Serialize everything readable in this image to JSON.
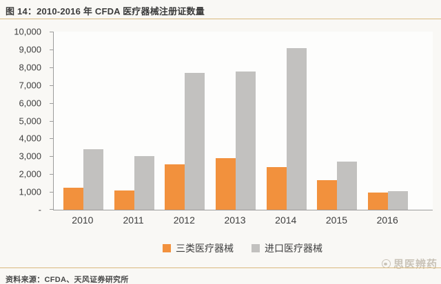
{
  "header": {
    "title": "图 14：2010-2016 年 CFDA 医疗器械注册证数量"
  },
  "footer": {
    "source": "资料来源：CFDA、天风证券研究所",
    "watermark": "思医辨药"
  },
  "colors": {
    "accent_rule": "#d9b87c",
    "class3_orange": "#f2913d",
    "import_gray": "#c2c1bf",
    "axis_line": "#9b9b9b",
    "text": "#3d3d3d",
    "watermark": "#c9c3b8"
  },
  "chart_data": {
    "type": "bar",
    "title": "2010-2016 年 CFDA 医疗器械注册证数量",
    "categories": [
      "2010",
      "2011",
      "2012",
      "2013",
      "2014",
      "2015",
      "2016"
    ],
    "series": [
      {
        "key": "class3",
        "name": "三类医疗器械",
        "color": "#f2913d",
        "values": [
          1250,
          1100,
          2550,
          2900,
          2400,
          1650,
          950
        ]
      },
      {
        "key": "import",
        "name": "进口医疗器械",
        "color": "#c2c1bf",
        "values": [
          3400,
          3000,
          7700,
          7750,
          9070,
          2720,
          1050
        ]
      }
    ],
    "ylim": [
      0,
      10000
    ],
    "y_tick_labels": [
      "10,000",
      "9,000",
      "8,000",
      "7,000",
      "6,000",
      "5,000",
      "4,000",
      "3,000",
      "2,000",
      "1,000",
      "-"
    ],
    "xlabel": "",
    "ylabel": "",
    "grid": false,
    "legend_position": "bottom"
  }
}
